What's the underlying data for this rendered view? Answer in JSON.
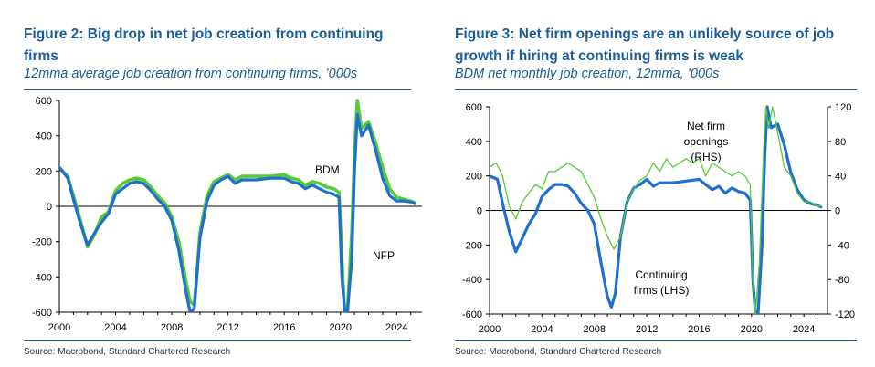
{
  "colors": {
    "title": "#1b5d99",
    "green": "#55cc33",
    "blue": "#1f6fd1",
    "axis": "#000000"
  },
  "chart_data": [
    {
      "type": "line",
      "title": "Figure 2: Big drop in net job creation from continuing firms",
      "subtitle": "12mma average job creation from continuing firms, ’000s",
      "source": "Source: Macrobond, Standard Chartered Research",
      "ylim": [
        -600,
        600
      ],
      "yticks": [
        -600,
        -400,
        -200,
        0,
        200,
        400,
        600
      ],
      "xlim": [
        2000,
        2025.8
      ],
      "xticks": [
        2000,
        2004,
        2008,
        2012,
        2016,
        2020,
        2024
      ],
      "grid": false,
      "annotations": [
        "BDM",
        "NFP"
      ],
      "series": [
        {
          "name": "BDM",
          "color": "green",
          "x": [
            2000,
            2000.6,
            2001,
            2001.5,
            2002,
            2002.5,
            2003,
            2003.5,
            2004,
            2004.5,
            2005,
            2005.5,
            2006,
            2006.5,
            2007,
            2007.5,
            2008,
            2008.5,
            2009,
            2009.3,
            2009.6,
            2010,
            2010.5,
            2011,
            2011.5,
            2012,
            2012.5,
            2013,
            2014,
            2015,
            2016,
            2016.5,
            2017,
            2017.5,
            2018,
            2018.5,
            2019,
            2019.5,
            2019.9,
            2020.1,
            2020.3,
            2020.5,
            2020.8,
            2021.0,
            2021.2,
            2021.5,
            2022,
            2022.5,
            2023,
            2023.5,
            2024,
            2024.5,
            2025,
            2025.3
          ],
          "y": [
            220,
            170,
            60,
            -80,
            -230,
            -160,
            -60,
            -30,
            90,
            130,
            150,
            160,
            150,
            110,
            60,
            20,
            -60,
            -200,
            -420,
            -540,
            -560,
            -150,
            60,
            140,
            160,
            180,
            150,
            170,
            170,
            170,
            180,
            160,
            150,
            120,
            140,
            130,
            110,
            100,
            80,
            -300,
            -600,
            -600,
            -150,
            300,
            600,
            440,
            480,
            360,
            220,
            100,
            50,
            40,
            30,
            20
          ]
        },
        {
          "name": "NFP",
          "color": "blue",
          "x": [
            2000,
            2000.6,
            2001,
            2001.5,
            2002,
            2002.5,
            2003,
            2003.5,
            2004,
            2004.5,
            2005,
            2005.5,
            2006,
            2006.5,
            2007,
            2007.5,
            2008,
            2008.5,
            2009,
            2009.3,
            2009.6,
            2010,
            2010.5,
            2011,
            2011.5,
            2012,
            2012.5,
            2013,
            2014,
            2015,
            2016,
            2016.5,
            2017,
            2017.5,
            2018,
            2018.5,
            2019,
            2019.5,
            2019.9,
            2020.1,
            2020.3,
            2020.5,
            2020.8,
            2021.0,
            2021.2,
            2021.5,
            2022,
            2022.5,
            2023,
            2023.5,
            2024,
            2024.5,
            2025,
            2025.3
          ],
          "y": [
            220,
            160,
            40,
            -100,
            -220,
            -150,
            -90,
            -40,
            70,
            100,
            130,
            140,
            130,
            90,
            40,
            0,
            -80,
            -250,
            -480,
            -600,
            -580,
            -180,
            30,
            120,
            150,
            170,
            130,
            150,
            150,
            160,
            160,
            140,
            130,
            100,
            120,
            100,
            80,
            70,
            50,
            -400,
            -600,
            -600,
            -300,
            200,
            520,
            400,
            460,
            320,
            160,
            60,
            30,
            30,
            25,
            15
          ]
        }
      ]
    },
    {
      "type": "line",
      "title": "Figure 3: Net firm openings are an unlikely source of job growth if hiring at continuing firms is weak",
      "subtitle": "BDM net monthly job creation, 12mma, ’000s",
      "source": "Source: Macrobond, Standard Chartered Research",
      "ylim": [
        -600,
        600
      ],
      "yticks": [
        -600,
        -400,
        -200,
        0,
        200,
        400,
        600
      ],
      "y2lim": [
        -120,
        120
      ],
      "y2ticks": [
        -120,
        -80,
        -40,
        0,
        40,
        80,
        120
      ],
      "xlim": [
        2000,
        2025.8
      ],
      "xticks": [
        2000,
        2004,
        2008,
        2012,
        2016,
        2020,
        2024
      ],
      "grid": false,
      "annotations": [
        "Net firm",
        "openings",
        "(RHS)",
        "Continuing",
        "firms (LHS)"
      ],
      "series": [
        {
          "name": "Continuing firms (LHS)",
          "color": "blue",
          "axis": "left",
          "x": [
            2000,
            2000.6,
            2001,
            2001.5,
            2002,
            2002.5,
            2003,
            2003.5,
            2004,
            2004.5,
            2005,
            2005.5,
            2006,
            2006.5,
            2007,
            2007.5,
            2008,
            2008.5,
            2009,
            2009.3,
            2009.6,
            2010,
            2010.5,
            2011,
            2011.5,
            2012,
            2012.5,
            2013,
            2014,
            2015,
            2016,
            2016.5,
            2017,
            2017.5,
            2018,
            2018.5,
            2019,
            2019.5,
            2019.9,
            2020.1,
            2020.3,
            2020.5,
            2020.8,
            2021.0,
            2021.2,
            2021.5,
            2022,
            2022.5,
            2023,
            2023.5,
            2024,
            2024.5,
            2025,
            2025.3
          ],
          "y": [
            200,
            180,
            40,
            -120,
            -240,
            -160,
            -80,
            -20,
            80,
            120,
            150,
            150,
            140,
            100,
            40,
            0,
            -80,
            -300,
            -500,
            -560,
            -480,
            -150,
            50,
            130,
            150,
            180,
            140,
            160,
            160,
            170,
            180,
            150,
            120,
            140,
            100,
            130,
            110,
            100,
            60,
            -400,
            -600,
            -600,
            -200,
            300,
            600,
            480,
            500,
            380,
            220,
            120,
            60,
            40,
            30,
            20
          ]
        },
        {
          "name": "Net firm openings (RHS)",
          "color": "green",
          "axis": "right",
          "x": [
            2000,
            2000.5,
            2001,
            2001.5,
            2002,
            2002.5,
            2003,
            2003.5,
            2004,
            2004.5,
            2005,
            2005.5,
            2006,
            2006.5,
            2007,
            2007.5,
            2008,
            2008.5,
            2009,
            2009.5,
            2010,
            2010.5,
            2011,
            2011.5,
            2012,
            2012.5,
            2013,
            2013.5,
            2014,
            2015,
            2015.5,
            2016,
            2016.5,
            2017,
            2017.5,
            2018,
            2018.5,
            2019,
            2019.5,
            2019.9,
            2020.1,
            2020.3,
            2020.6,
            2020.9,
            2021.1,
            2021.3,
            2021.6,
            2022,
            2022.5,
            2023,
            2023.5,
            2024,
            2024.5,
            2025,
            2025.3
          ],
          "y": [
            50,
            55,
            40,
            5,
            -10,
            10,
            20,
            30,
            25,
            45,
            45,
            50,
            55,
            50,
            45,
            30,
            15,
            -10,
            -30,
            -45,
            -30,
            10,
            25,
            35,
            40,
            55,
            45,
            60,
            50,
            60,
            55,
            60,
            40,
            55,
            50,
            45,
            40,
            45,
            40,
            30,
            -80,
            -120,
            -60,
            60,
            120,
            95,
            120,
            90,
            50,
            40,
            20,
            10,
            10,
            5,
            5
          ]
        }
      ]
    }
  ]
}
